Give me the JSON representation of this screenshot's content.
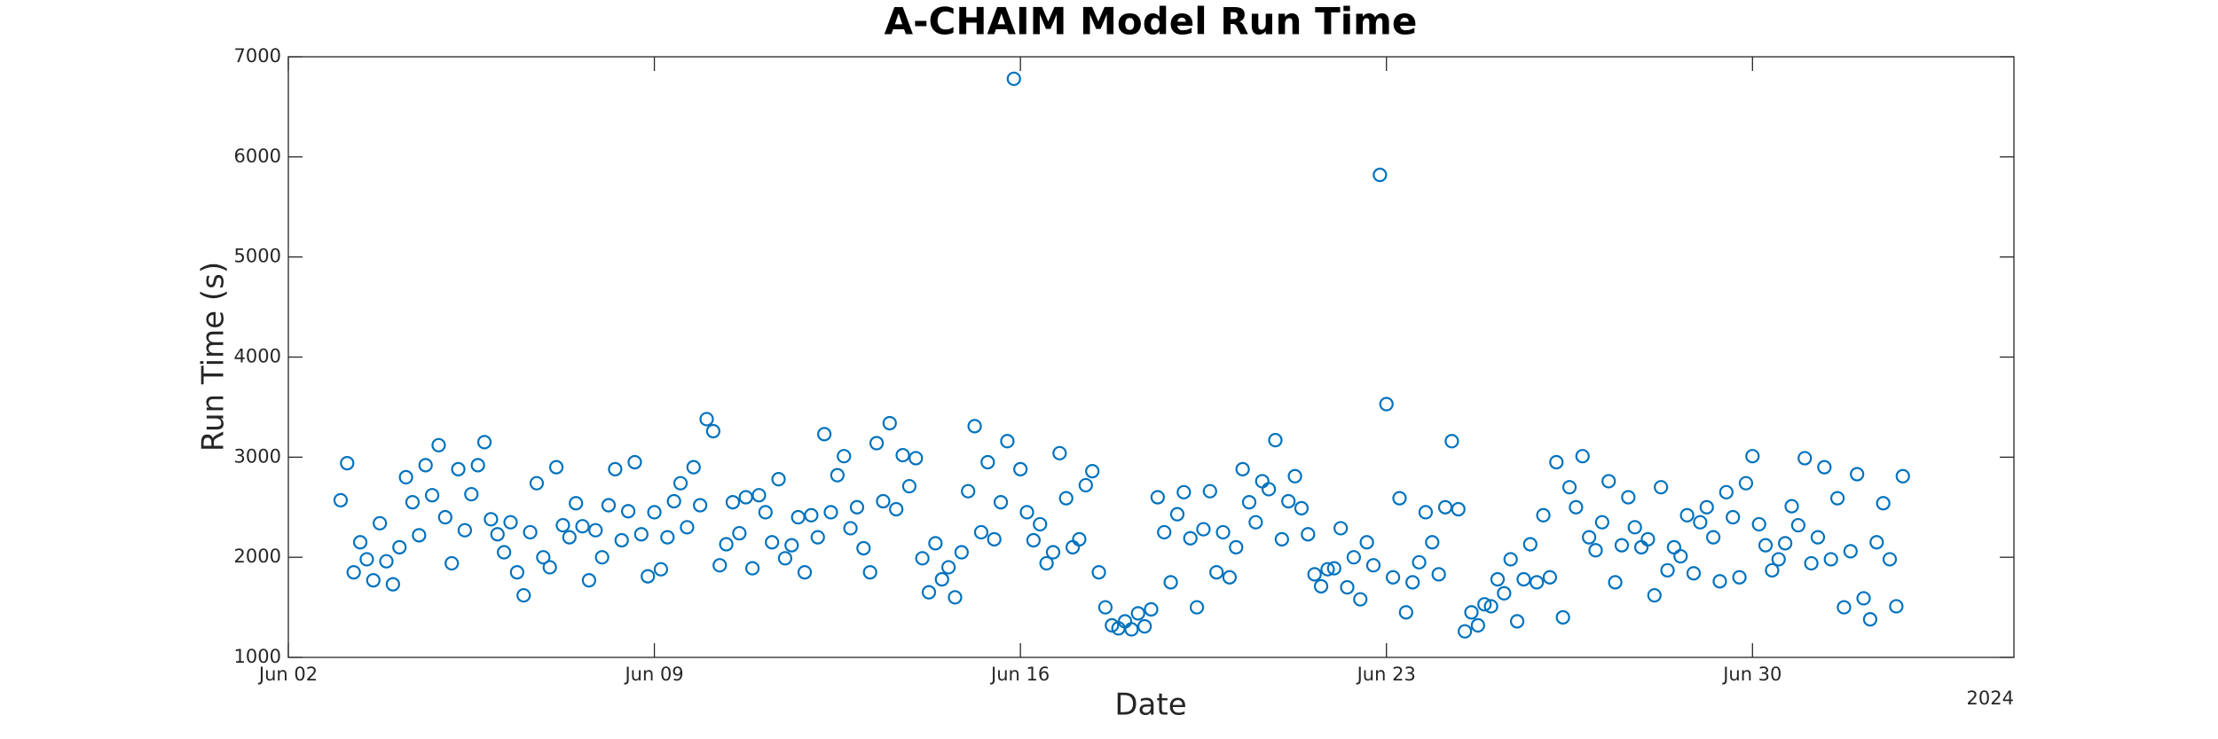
{
  "chart_data": {
    "type": "scatter",
    "title": "A-CHAIM Model Run Time",
    "x_label": "Date",
    "y_label": "Run Time (s)",
    "x_offset_label": "2024",
    "color": "#0072bd",
    "grid": false,
    "xlim": [
      "2024-06-02",
      "2024-07-05"
    ],
    "xticks": [
      {
        "value": "2024-06-02",
        "label": "Jun 02"
      },
      {
        "value": "2024-06-09",
        "label": "Jun 09"
      },
      {
        "value": "2024-06-16",
        "label": "Jun 16"
      },
      {
        "value": "2024-06-23",
        "label": "Jun 23"
      },
      {
        "value": "2024-06-30",
        "label": "Jun 30"
      }
    ],
    "ylim": [
      1000,
      7000
    ],
    "yticks": [
      1000,
      2000,
      3000,
      4000,
      5000,
      6000,
      7000
    ],
    "x": [
      "2024-06-03T00:00",
      "2024-06-03T03:00",
      "2024-06-03T06:00",
      "2024-06-03T09:00",
      "2024-06-03T12:00",
      "2024-06-03T15:00",
      "2024-06-03T18:00",
      "2024-06-03T21:00",
      "2024-06-04T00:00",
      "2024-06-04T03:00",
      "2024-06-04T06:00",
      "2024-06-04T09:00",
      "2024-06-04T12:00",
      "2024-06-04T15:00",
      "2024-06-04T18:00",
      "2024-06-04T21:00",
      "2024-06-05T00:00",
      "2024-06-05T03:00",
      "2024-06-05T06:00",
      "2024-06-05T09:00",
      "2024-06-05T12:00",
      "2024-06-05T15:00",
      "2024-06-05T18:00",
      "2024-06-05T21:00",
      "2024-06-06T00:00",
      "2024-06-06T03:00",
      "2024-06-06T06:00",
      "2024-06-06T09:00",
      "2024-06-06T12:00",
      "2024-06-06T15:00",
      "2024-06-06T18:00",
      "2024-06-06T21:00",
      "2024-06-07T00:00",
      "2024-06-07T03:00",
      "2024-06-07T06:00",
      "2024-06-07T09:00",
      "2024-06-07T12:00",
      "2024-06-07T15:00",
      "2024-06-07T18:00",
      "2024-06-07T21:00",
      "2024-06-08T00:00",
      "2024-06-08T03:00",
      "2024-06-08T06:00",
      "2024-06-08T09:00",
      "2024-06-08T12:00",
      "2024-06-08T15:00",
      "2024-06-08T18:00",
      "2024-06-08T21:00",
      "2024-06-09T00:00",
      "2024-06-09T03:00",
      "2024-06-09T06:00",
      "2024-06-09T09:00",
      "2024-06-09T12:00",
      "2024-06-09T15:00",
      "2024-06-09T18:00",
      "2024-06-09T21:00",
      "2024-06-10T00:00",
      "2024-06-10T03:00",
      "2024-06-10T06:00",
      "2024-06-10T09:00",
      "2024-06-10T12:00",
      "2024-06-10T15:00",
      "2024-06-10T18:00",
      "2024-06-10T21:00",
      "2024-06-11T00:00",
      "2024-06-11T03:00",
      "2024-06-11T06:00",
      "2024-06-11T09:00",
      "2024-06-11T12:00",
      "2024-06-11T15:00",
      "2024-06-11T18:00",
      "2024-06-11T21:00",
      "2024-06-12T00:00",
      "2024-06-12T03:00",
      "2024-06-12T06:00",
      "2024-06-12T09:00",
      "2024-06-12T12:00",
      "2024-06-12T15:00",
      "2024-06-12T18:00",
      "2024-06-12T21:00",
      "2024-06-13T00:00",
      "2024-06-13T03:00",
      "2024-06-13T06:00",
      "2024-06-13T09:00",
      "2024-06-13T12:00",
      "2024-06-13T15:00",
      "2024-06-13T18:00",
      "2024-06-13T21:00",
      "2024-06-14T00:00",
      "2024-06-14T03:00",
      "2024-06-14T06:00",
      "2024-06-14T09:00",
      "2024-06-14T12:00",
      "2024-06-14T15:00",
      "2024-06-14T18:00",
      "2024-06-14T21:00",
      "2024-06-15T00:00",
      "2024-06-15T03:00",
      "2024-06-15T06:00",
      "2024-06-15T09:00",
      "2024-06-15T12:00",
      "2024-06-15T15:00",
      "2024-06-15T18:00",
      "2024-06-15T21:00",
      "2024-06-16T00:00",
      "2024-06-16T03:00",
      "2024-06-16T06:00",
      "2024-06-16T09:00",
      "2024-06-16T12:00",
      "2024-06-16T15:00",
      "2024-06-16T18:00",
      "2024-06-16T21:00",
      "2024-06-17T00:00",
      "2024-06-17T03:00",
      "2024-06-17T06:00",
      "2024-06-17T09:00",
      "2024-06-17T12:00",
      "2024-06-17T15:00",
      "2024-06-17T18:00",
      "2024-06-17T21:00",
      "2024-06-18T00:00",
      "2024-06-18T03:00",
      "2024-06-18T06:00",
      "2024-06-18T09:00",
      "2024-06-18T12:00",
      "2024-06-18T15:00",
      "2024-06-18T18:00",
      "2024-06-18T21:00",
      "2024-06-19T00:00",
      "2024-06-19T03:00",
      "2024-06-19T06:00",
      "2024-06-19T09:00",
      "2024-06-19T12:00",
      "2024-06-19T15:00",
      "2024-06-19T18:00",
      "2024-06-19T21:00",
      "2024-06-20T00:00",
      "2024-06-20T03:00",
      "2024-06-20T06:00",
      "2024-06-20T09:00",
      "2024-06-20T12:00",
      "2024-06-20T15:00",
      "2024-06-20T18:00",
      "2024-06-20T21:00",
      "2024-06-21T00:00",
      "2024-06-21T03:00",
      "2024-06-21T06:00",
      "2024-06-21T09:00",
      "2024-06-21T12:00",
      "2024-06-21T15:00",
      "2024-06-21T18:00",
      "2024-06-21T21:00",
      "2024-06-22T00:00",
      "2024-06-22T03:00",
      "2024-06-22T06:00",
      "2024-06-22T09:00",
      "2024-06-22T12:00",
      "2024-06-22T15:00",
      "2024-06-22T18:00",
      "2024-06-22T21:00",
      "2024-06-23T00:00",
      "2024-06-23T03:00",
      "2024-06-23T06:00",
      "2024-06-23T09:00",
      "2024-06-23T12:00",
      "2024-06-23T15:00",
      "2024-06-23T18:00",
      "2024-06-23T21:00",
      "2024-06-24T00:00",
      "2024-06-24T03:00",
      "2024-06-24T06:00",
      "2024-06-24T09:00",
      "2024-06-24T12:00",
      "2024-06-24T15:00",
      "2024-06-24T18:00",
      "2024-06-24T21:00",
      "2024-06-25T00:00",
      "2024-06-25T03:00",
      "2024-06-25T06:00",
      "2024-06-25T09:00",
      "2024-06-25T12:00",
      "2024-06-25T15:00",
      "2024-06-25T18:00",
      "2024-06-25T21:00",
      "2024-06-26T00:00",
      "2024-06-26T03:00",
      "2024-06-26T06:00",
      "2024-06-26T09:00",
      "2024-06-26T12:00",
      "2024-06-26T15:00",
      "2024-06-26T18:00",
      "2024-06-26T21:00",
      "2024-06-27T00:00",
      "2024-06-27T03:00",
      "2024-06-27T06:00",
      "2024-06-27T09:00",
      "2024-06-27T12:00",
      "2024-06-27T15:00",
      "2024-06-27T18:00",
      "2024-06-27T21:00",
      "2024-06-28T00:00",
      "2024-06-28T03:00",
      "2024-06-28T06:00",
      "2024-06-28T09:00",
      "2024-06-28T12:00",
      "2024-06-28T15:00",
      "2024-06-28T18:00",
      "2024-06-28T21:00",
      "2024-06-29T00:00",
      "2024-06-29T03:00",
      "2024-06-29T06:00",
      "2024-06-29T09:00",
      "2024-06-29T12:00",
      "2024-06-29T15:00",
      "2024-06-29T18:00",
      "2024-06-29T21:00",
      "2024-06-30T00:00",
      "2024-06-30T03:00",
      "2024-06-30T06:00",
      "2024-06-30T09:00",
      "2024-06-30T12:00",
      "2024-06-30T15:00",
      "2024-06-30T18:00",
      "2024-06-30T21:00",
      "2024-07-01T00:00",
      "2024-07-01T03:00",
      "2024-07-01T06:00",
      "2024-07-01T09:00",
      "2024-07-01T12:00",
      "2024-07-01T15:00",
      "2024-07-01T18:00",
      "2024-07-01T21:00",
      "2024-07-02T00:00",
      "2024-07-02T03:00",
      "2024-07-02T06:00",
      "2024-07-02T09:00",
      "2024-07-02T12:00",
      "2024-07-02T15:00",
      "2024-07-02T18:00",
      "2024-07-02T21:00"
    ],
    "values": [
      2570,
      2940,
      1850,
      2150,
      1980,
      1770,
      2340,
      1960,
      1730,
      2100,
      2800,
      2550,
      2220,
      2920,
      2620,
      3120,
      2400,
      1940,
      2880,
      2270,
      2630,
      2920,
      3150,
      2380,
      2230,
      2050,
      2350,
      1850,
      1620,
      2250,
      2740,
      2000,
      1900,
      2900,
      2320,
      2200,
      2540,
      2310,
      1770,
      2270,
      2000,
      2520,
      2880,
      2170,
      2460,
      2950,
      2230,
      1810,
      2450,
      1880,
      2200,
      2560,
      2740,
      2300,
      2900,
      2520,
      3380,
      3260,
      1920,
      2130,
      2550,
      2240,
      2600,
      1890,
      2620,
      2450,
      2150,
      2780,
      1990,
      2120,
      2400,
      1850,
      2420,
      2200,
      3230,
      2450,
      2820,
      3010,
      2290,
      2500,
      2090,
      1850,
      3140,
      2560,
      3340,
      2480,
      3020,
      2710,
      2990,
      1990,
      1650,
      2140,
      1780,
      1900,
      1600,
      2050,
      2660,
      3310,
      2250,
      2950,
      2180,
      2550,
      3160,
      6780,
      2880,
      2450,
      2170,
      2330,
      1940,
      2050,
      3040,
      2590,
      2100,
      2180,
      2720,
      2860,
      1850,
      1500,
      1320,
      1290,
      1360,
      1280,
      1440,
      1310,
      1480,
      2600,
      2250,
      1750,
      2430,
      2650,
      2190,
      1500,
      2280,
      2660,
      1850,
      2250,
      1800,
      2100,
      2880,
      2550,
      2350,
      2760,
      2680,
      3170,
      2180,
      2560,
      2810,
      2490,
      2230,
      1830,
      1710,
      1880,
      1890,
      2290,
      1700,
      2000,
      1580,
      2150,
      1920,
      5820,
      3530,
      1800,
      2590,
      1450,
      1750,
      1950,
      2450,
      2150,
      1830,
      2500,
      3160,
      2480,
      1260,
      1450,
      1320,
      1530,
      1510,
      1780,
      1640,
      1980,
      1360,
      1780,
      2130,
      1750,
      2420,
      1800,
      2950,
      1400,
      2700,
      2500,
      3010,
      2200,
      2070,
      2350,
      2760,
      1750,
      2120,
      2600,
      2300,
      2100,
      2180,
      1620,
      2700,
      1870,
      2100,
      2010,
      2420,
      1840,
      2350,
      2500,
      2200,
      1760,
      2650,
      2400,
      1800,
      2740,
      3010,
      2330,
      2120,
      1870,
      1980,
      2140,
      2510,
      2320,
      2990,
      1940,
      2200,
      2900,
      1980,
      2590,
      1500,
      2060,
      2830,
      1590,
      1380,
      2150,
      2540,
      1980,
      1510,
      2810
    ]
  }
}
